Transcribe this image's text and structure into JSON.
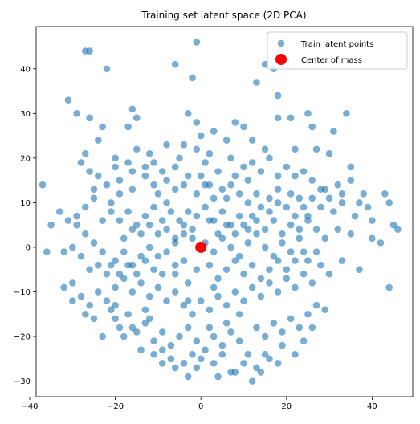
{
  "chart_data": {
    "type": "scatter",
    "title": "Training set latent space (2D PCA)",
    "xlabel": "",
    "ylabel": "",
    "xlim": [
      -38.5,
      49.5
    ],
    "ylim": [
      -33.5,
      49.5
    ],
    "xticks": [
      -40,
      -20,
      0,
      20,
      40
    ],
    "yticks": [
      -30,
      -20,
      -10,
      0,
      10,
      20,
      30,
      40
    ],
    "grid": false,
    "legend_position": "top-right",
    "series": [
      {
        "name": "Train latent points",
        "color": "#1f77b4",
        "alpha": 0.6,
        "points": [
          [
            -27,
            44
          ],
          [
            -26,
            44
          ],
          [
            -22,
            40
          ],
          [
            -1,
            46
          ],
          [
            -6,
            41
          ],
          [
            -2,
            38
          ],
          [
            17,
            40
          ],
          [
            15,
            41
          ],
          [
            13,
            37
          ],
          [
            18,
            34
          ],
          [
            -31,
            33
          ],
          [
            -29,
            30
          ],
          [
            -26,
            29
          ],
          [
            -23,
            27
          ],
          [
            -16,
            31
          ],
          [
            -15,
            29
          ],
          [
            -17,
            27
          ],
          [
            -3,
            30
          ],
          [
            -1,
            28
          ],
          [
            3,
            26
          ],
          [
            -4,
            23
          ],
          [
            0,
            25
          ],
          [
            6,
            24
          ],
          [
            8,
            28
          ],
          [
            10,
            27
          ],
          [
            12,
            24
          ],
          [
            15,
            22
          ],
          [
            18,
            29
          ],
          [
            21,
            29
          ],
          [
            25,
            30
          ],
          [
            27,
            22
          ],
          [
            26,
            27
          ],
          [
            31,
            26
          ],
          [
            34,
            30
          ],
          [
            35,
            18
          ],
          [
            30,
            21
          ],
          [
            22,
            22
          ],
          [
            16,
            20
          ],
          [
            12,
            19
          ],
          [
            7,
            20
          ],
          [
            2,
            21
          ],
          [
            -1,
            22
          ],
          [
            -5,
            20
          ],
          [
            -8,
            23
          ],
          [
            -12,
            21
          ],
          [
            -15,
            22
          ],
          [
            -17,
            19
          ],
          [
            -20,
            20
          ],
          [
            -24,
            24
          ],
          [
            -27,
            21
          ],
          [
            -28,
            19
          ],
          [
            -26,
            17
          ],
          [
            -25,
            13
          ],
          [
            -20,
            18
          ],
          [
            -19,
            15
          ],
          [
            -16,
            17
          ],
          [
            -13,
            18
          ],
          [
            -11,
            19
          ],
          [
            -9,
            17
          ],
          [
            -6,
            18
          ],
          [
            -3,
            16
          ],
          [
            1,
            19
          ],
          [
            4,
            17
          ],
          [
            8,
            16
          ],
          [
            11,
            15
          ],
          [
            14,
            17
          ],
          [
            18,
            16
          ],
          [
            22,
            16
          ],
          [
            26,
            15
          ],
          [
            29,
            13
          ],
          [
            32,
            14
          ],
          [
            35,
            15
          ],
          [
            38,
            12
          ],
          [
            43,
            12
          ],
          [
            44,
            10
          ],
          [
            39,
            9
          ],
          [
            36,
            7
          ],
          [
            33,
            10
          ],
          [
            31,
            8
          ],
          [
            28,
            9
          ],
          [
            25,
            7
          ],
          [
            23,
            11
          ],
          [
            21,
            12
          ],
          [
            18,
            10
          ],
          [
            16,
            8
          ],
          [
            13,
            12
          ],
          [
            11,
            10
          ],
          [
            9,
            12
          ],
          [
            7,
            14
          ],
          [
            5,
            13
          ],
          [
            3,
            11
          ],
          [
            1,
            14
          ],
          [
            -1,
            12
          ],
          [
            -4,
            14
          ],
          [
            -6,
            13
          ],
          [
            -8,
            15
          ],
          [
            -11,
            14
          ],
          [
            -13,
            16
          ],
          [
            -16,
            13
          ],
          [
            -19,
            12
          ],
          [
            -21,
            10
          ],
          [
            -25,
            11
          ],
          [
            -27,
            9
          ],
          [
            -29,
            7
          ],
          [
            -31,
            6
          ],
          [
            -33,
            8
          ],
          [
            -35,
            5
          ],
          [
            -37,
            14
          ],
          [
            -30,
            0
          ],
          [
            -32,
            -1
          ],
          [
            -28,
            -2
          ],
          [
            -26,
            -5
          ],
          [
            -24,
            -4
          ],
          [
            -22,
            -6
          ],
          [
            -20,
            -3
          ],
          [
            -18,
            -1
          ],
          [
            -16,
            -4
          ],
          [
            -14,
            -2
          ],
          [
            -12,
            0
          ],
          [
            -10,
            -2
          ],
          [
            -8,
            -1
          ],
          [
            -6,
            1
          ],
          [
            -4,
            3
          ],
          [
            -2,
            2
          ],
          [
            1,
            1
          ],
          [
            3,
            -1
          ],
          [
            5,
            2
          ],
          [
            7,
            0
          ],
          [
            9,
            -2
          ],
          [
            11,
            1
          ],
          [
            13,
            3
          ],
          [
            15,
            0
          ],
          [
            17,
            -2
          ],
          [
            19,
            1
          ],
          [
            21,
            -1
          ],
          [
            23,
            2
          ],
          [
            25,
            -3
          ],
          [
            27,
            -1
          ],
          [
            29,
            2
          ],
          [
            32,
            4
          ],
          [
            35,
            3
          ],
          [
            40,
            2
          ],
          [
            42,
            1
          ],
          [
            37,
            -5
          ],
          [
            33,
            -3
          ],
          [
            30,
            -6
          ],
          [
            28,
            -4
          ],
          [
            26,
            -8
          ],
          [
            24,
            -6
          ],
          [
            22,
            -9
          ],
          [
            20,
            -7
          ],
          [
            18,
            -10
          ],
          [
            16,
            -8
          ],
          [
            14,
            -11
          ],
          [
            12,
            -9
          ],
          [
            10,
            -12
          ],
          [
            8,
            -10
          ],
          [
            6,
            -13
          ],
          [
            4,
            -11
          ],
          [
            2,
            -14
          ],
          [
            0,
            -12
          ],
          [
            -2,
            -15
          ],
          [
            -4,
            -13
          ],
          [
            -6,
            -10
          ],
          [
            -8,
            -12
          ],
          [
            -10,
            -9
          ],
          [
            -12,
            -11
          ],
          [
            -14,
            -8
          ],
          [
            -16,
            -10
          ],
          [
            -18,
            -7
          ],
          [
            -20,
            -9
          ],
          [
            -22,
            -12
          ],
          [
            -24,
            -10
          ],
          [
            -26,
            -13
          ],
          [
            -28,
            -11
          ],
          [
            -30,
            -8
          ],
          [
            -32,
            -9
          ],
          [
            -25,
            -16
          ],
          [
            -21,
            -14
          ],
          [
            -17,
            -15
          ],
          [
            -15,
            -19
          ],
          [
            -13,
            -17
          ],
          [
            -11,
            -21
          ],
          [
            -9,
            -19
          ],
          [
            -7,
            -22
          ],
          [
            -5,
            -20
          ],
          [
            -3,
            -18
          ],
          [
            -1,
            -21
          ],
          [
            1,
            -23
          ],
          [
            3,
            -20
          ],
          [
            5,
            -22
          ],
          [
            7,
            -19
          ],
          [
            9,
            -21
          ],
          [
            11,
            -24
          ],
          [
            13,
            -18
          ],
          [
            15,
            -20
          ],
          [
            17,
            -17
          ],
          [
            19,
            -19
          ],
          [
            21,
            -16
          ],
          [
            23,
            -18
          ],
          [
            25,
            -15
          ],
          [
            27,
            -13
          ],
          [
            29,
            -14
          ],
          [
            22,
            -24
          ],
          [
            19,
            -22
          ],
          [
            16,
            -25
          ],
          [
            13,
            -27
          ],
          [
            10,
            -26
          ],
          [
            8,
            -28
          ],
          [
            5,
            -24
          ],
          [
            3,
            -26
          ],
          [
            0,
            -25
          ],
          [
            -2,
            -24
          ],
          [
            -4,
            -26
          ],
          [
            -7,
            -25
          ],
          [
            -9,
            -23
          ],
          [
            -11,
            -24
          ],
          [
            12,
            -30
          ],
          [
            14,
            -28
          ],
          [
            -13,
            -14
          ],
          [
            -19,
            -18
          ],
          [
            -23,
            -20
          ],
          [
            -27,
            -15
          ],
          [
            -30,
            -12
          ],
          [
            -6,
            -6
          ],
          [
            -3,
            -8
          ],
          [
            -1,
            -5
          ],
          [
            2,
            -4
          ],
          [
            4,
            -7
          ],
          [
            6,
            -5
          ],
          [
            8,
            -3
          ],
          [
            10,
            -6
          ],
          [
            12,
            -4
          ],
          [
            14,
            -7
          ],
          [
            16,
            -5
          ],
          [
            18,
            -3
          ],
          [
            20,
            -5
          ],
          [
            22,
            -3
          ],
          [
            24,
            -1
          ],
          [
            -4,
            -3
          ],
          [
            -6,
            -4
          ],
          [
            -9,
            -6
          ],
          [
            -11,
            -5
          ],
          [
            -13,
            -3
          ],
          [
            -15,
            -6
          ],
          [
            -17,
            -4
          ],
          [
            -19,
            -6
          ],
          [
            -21,
            -4
          ],
          [
            -23,
            -1
          ],
          [
            -25,
            1
          ],
          [
            -27,
            3
          ],
          [
            -29,
            5
          ],
          [
            -23,
            6
          ],
          [
            -21,
            8
          ],
          [
            -19,
            6
          ],
          [
            -17,
            8
          ],
          [
            -15,
            5
          ],
          [
            -13,
            7
          ],
          [
            -11,
            9
          ],
          [
            -9,
            6
          ],
          [
            -7,
            8
          ],
          [
            -5,
            6
          ],
          [
            -3,
            8
          ],
          [
            -1,
            7
          ],
          [
            1,
            9
          ],
          [
            3,
            6
          ],
          [
            5,
            8
          ],
          [
            7,
            5
          ],
          [
            9,
            7
          ],
          [
            11,
            4
          ],
          [
            13,
            6
          ],
          [
            15,
            4
          ],
          [
            17,
            6
          ],
          [
            19,
            3
          ],
          [
            21,
            5
          ],
          [
            23,
            4
          ],
          [
            25,
            6
          ],
          [
            27,
            4
          ],
          [
            -36,
            -1
          ],
          [
            -20,
            -13
          ],
          [
            -18,
            2
          ],
          [
            -16,
            4
          ],
          [
            -14,
            3
          ],
          [
            -12,
            5
          ],
          [
            -10,
            3
          ],
          [
            -8,
            4
          ],
          [
            -6,
            2
          ],
          [
            -4,
            5
          ],
          [
            -2,
            4
          ],
          [
            2,
            6
          ],
          [
            4,
            3
          ],
          [
            6,
            5
          ],
          [
            8,
            3
          ],
          [
            10,
            5
          ],
          [
            12,
            7
          ],
          [
            14,
            9
          ],
          [
            16,
            11
          ],
          [
            18,
            13
          ],
          [
            20,
            9
          ],
          [
            22,
            7
          ],
          [
            24,
            9
          ],
          [
            26,
            11
          ],
          [
            28,
            13
          ],
          [
            30,
            11
          ],
          [
            33,
            12
          ],
          [
            37,
            10
          ],
          [
            40,
            6
          ],
          [
            45,
            5
          ],
          [
            44,
            -9
          ],
          [
            46,
            4
          ],
          [
            -24,
            16
          ],
          [
            -22,
            14
          ],
          [
            -10,
            12
          ],
          [
            -8,
            10
          ],
          [
            0,
            16
          ],
          [
            2,
            14
          ],
          [
            6,
            11
          ],
          [
            10,
            18
          ],
          [
            20,
            18
          ],
          [
            24,
            17
          ],
          [
            -14,
            -23
          ],
          [
            -18,
            -20
          ],
          [
            -3,
            -29
          ],
          [
            -1,
            -27
          ],
          [
            4,
            -29
          ],
          [
            7,
            -28
          ],
          [
            15,
            -24
          ],
          [
            18,
            -26
          ],
          [
            24,
            -21
          ],
          [
            26,
            -18
          ],
          [
            -6,
            -27
          ],
          [
            -9,
            -26
          ],
          [
            2,
            -18
          ],
          [
            6,
            -17
          ],
          [
            9,
            -15
          ],
          [
            -3,
            -12
          ],
          [
            3,
            -9
          ],
          [
            -12,
            -16
          ],
          [
            -16,
            -18
          ],
          [
            -20,
            -16
          ]
        ]
      },
      {
        "name": "Center of mass",
        "color": "#ff0000",
        "alpha": 1.0,
        "points": [
          [
            0,
            0
          ]
        ]
      }
    ]
  }
}
